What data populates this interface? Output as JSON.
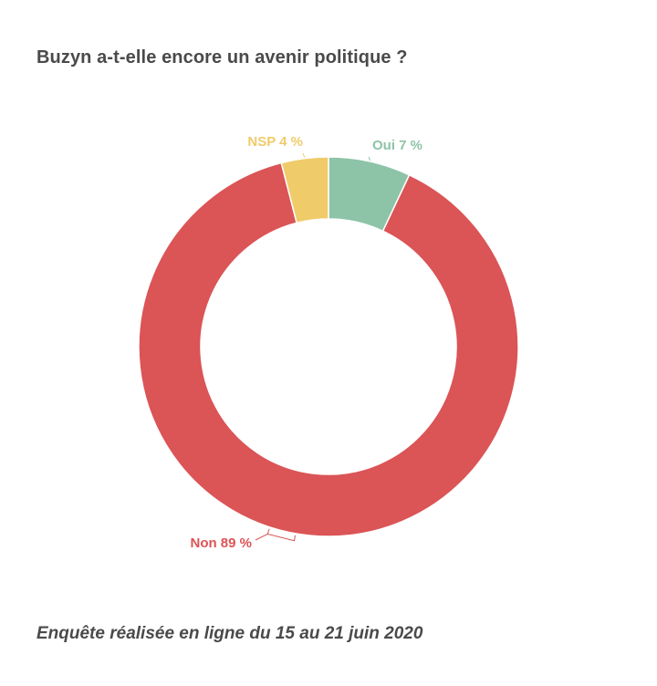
{
  "title": "Buzyn a-t-elle encore un avenir politique ?",
  "footnote": "Enquête réalisée en ligne du 15 au 21 juin 2020",
  "chart_data": {
    "type": "pie",
    "donut": true,
    "title": "Buzyn a-t-elle encore un avenir politique ?",
    "slices": [
      {
        "name": "Oui",
        "value": 7,
        "label": "Oui 7 %",
        "color": "#8dc3a7"
      },
      {
        "name": "Non",
        "value": 89,
        "label": "Non 89 %",
        "color": "#db5456"
      },
      {
        "name": "NSP",
        "value": 4,
        "label": "NSP 4 %",
        "color": "#efcb6a"
      }
    ]
  }
}
